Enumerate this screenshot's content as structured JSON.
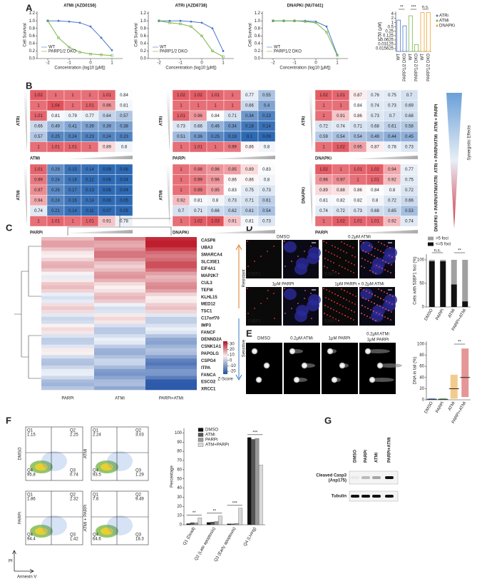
{
  "panel_labels": [
    "A",
    "B",
    "C",
    "D",
    "E",
    "F",
    "G"
  ],
  "A": {
    "ylabel": "Cell Survival",
    "xlabel": "Concentration (log10 [μM])",
    "xlim": [
      -2.5,
      1.5
    ],
    "ylim": [
      0,
      1.25
    ],
    "xticks": [
      -2,
      -1,
      0,
      1
    ],
    "yticks": [
      {
        "value": 0,
        "label": "0.0"
      },
      {
        "value": 0.2,
        "label": "0.2"
      },
      {
        "value": 0.4,
        "label": "0.4"
      },
      {
        "value": 0.6,
        "label": "0.6"
      },
      {
        "value": 0.8,
        "label": "0.8"
      },
      {
        "value": 1,
        "label": "1.0"
      },
      {
        "value": 1.2,
        "label": "1.2"
      }
    ],
    "plots": [
      {
        "title": "ATMi (AZD0156)",
        "series": [
          {
            "name": "WT",
            "color": "#4a78c8",
            "x": [
              -2,
              -1.5,
              -1,
              -0.5,
              0,
              0.5,
              1
            ],
            "values": [
              1.0,
              1.0,
              0.98,
              0.95,
              0.85,
              0.55,
              0.22
            ]
          },
          {
            "name": "PARP1/2 DKO",
            "color": "#7ab648",
            "x": [
              -2,
              -1.5,
              -1,
              -0.5,
              0,
              0.5,
              1
            ],
            "values": [
              1.0,
              0.55,
              0.3,
              0.17,
              0.12,
              0.1,
              0.08
            ]
          }
        ]
      },
      {
        "title": "ATRi (AZD6738)",
        "series": [
          {
            "name": "WT",
            "color": "#4a78c8",
            "x": [
              -2,
              -1.5,
              -1,
              -0.5,
              0,
              0.5,
              1
            ],
            "values": [
              1.0,
              1.0,
              1.0,
              0.98,
              0.95,
              0.8,
              0.2
            ]
          },
          {
            "name": "PARP1/2 DKO",
            "color": "#7ab648",
            "x": [
              -2,
              -1.5,
              -1,
              -0.5,
              0,
              0.5,
              1
            ],
            "values": [
              1.0,
              0.95,
              0.92,
              0.85,
              0.6,
              0.2,
              0.05
            ]
          }
        ]
      },
      {
        "title": "DNAPKi (NU7441)",
        "series": [
          {
            "name": "WT",
            "color": "#4a78c8",
            "x": [
              -2,
              -1.5,
              -1,
              -0.5,
              0,
              0.5,
              1
            ],
            "values": [
              1.0,
              1.0,
              1.0,
              1.0,
              0.98,
              0.85,
              0.1
            ]
          },
          {
            "name": "PARP1/2 DKO",
            "color": "#7ab648",
            "x": [
              -2,
              -1.5,
              -1,
              -0.5,
              0,
              0.5,
              1
            ],
            "values": [
              1.0,
              1.0,
              1.0,
              0.98,
              0.95,
              0.7,
              0.08
            ]
          }
        ]
      }
    ],
    "ic50": {
      "ylabel": "IC50 (μM)",
      "log_scale": true,
      "ylim": [
        0.01,
        6
      ],
      "yticks": [
        4,
        2,
        1,
        0.5,
        0.25,
        0.125,
        0.0625,
        0.03125,
        0.015625
      ],
      "categories": [
        "WT",
        "PARP1/2 DKO",
        "WT",
        "PARP1/2 DKO",
        "WT",
        "PARP1/2 DKO"
      ],
      "values": [
        1.5,
        0.6,
        3,
        0.03,
        5,
        5
      ],
      "colors": [
        "#4a78c8",
        "#4a78c8",
        "#7ab648",
        "#7ab648",
        "#f0a030",
        "#f0a030"
      ],
      "legend": [
        {
          "name": "ATRi",
          "color": "#4a78c8"
        },
        {
          "name": "ATMi",
          "color": "#7ab648"
        },
        {
          "name": "DNAPKi",
          "color": "#f0a030"
        }
      ],
      "annotations": [
        "**",
        "***",
        "n.s."
      ]
    }
  },
  "B": {
    "maps": [
      {
        "rowlabel": "ATRi",
        "collabel": "ATMi",
        "cells": [
          [
            1.02,
            1.0,
            1.0,
            1.0,
            1.01,
            0.84
          ],
          [
            1.0,
            1.04,
            1.0,
            1.01,
            0.96,
            0.81
          ],
          [
            1.01,
            0.81,
            0.79,
            0.77,
            0.64,
            0.57
          ],
          [
            0.66,
            0.49,
            0.41,
            0.39,
            0.39,
            0.38
          ],
          [
            0.57,
            0.25,
            0.24,
            0.23,
            0.24,
            0.23
          ],
          [
            1.0,
            1.01,
            1.01,
            1.0,
            0.89,
            0.8
          ]
        ]
      },
      {
        "rowlabel": "ATRi",
        "collabel": "PARPi",
        "cells": [
          [
            1.02,
            1.02,
            1.01,
            1.0,
            0.77,
            0.55
          ],
          [
            1.0,
            1.0,
            1.0,
            1.0,
            0.66,
            0.4
          ],
          [
            1.01,
            0.96,
            0.84,
            0.71,
            0.34,
            0.23
          ],
          [
            0.73,
            0.66,
            0.46,
            0.34,
            0.18,
            0.14
          ],
          [
            0.51,
            0.36,
            0.25,
            0.18,
            0.1,
            0.09
          ],
          [
            1.0,
            1.01,
            1.0,
            0.99,
            0.86,
            0.8
          ]
        ]
      },
      {
        "rowlabel": "ATRi",
        "collabel": "DNAPKi",
        "cells": [
          [
            1.02,
            1.01,
            0.87,
            0.76,
            0.75,
            0.7
          ],
          [
            1.0,
            1.0,
            0.84,
            0.74,
            0.73,
            0.69
          ],
          [
            1.0,
            0.91,
            0.86,
            0.73,
            0.7,
            0.68
          ],
          [
            0.72,
            0.74,
            0.71,
            0.68,
            0.61,
            0.58
          ],
          [
            0.59,
            0.54,
            0.54,
            0.49,
            0.44,
            0.45
          ],
          [
            1.0,
            1.02,
            0.95,
            0.87,
            0.78,
            0.73
          ]
        ]
      },
      {
        "rowlabel": "ATMi",
        "collabel": "PARPi",
        "cells": [
          [
            1.01,
            0.29,
            0.15,
            0.14,
            0.09,
            0.06
          ],
          [
            0.99,
            0.24,
            0.16,
            0.12,
            0.06,
            0.04
          ],
          [
            0.97,
            0.26,
            0.17,
            0.13,
            0.06,
            0.04
          ],
          [
            0.94,
            0.24,
            0.16,
            0.14,
            0.06,
            0.05
          ],
          [
            0.74,
            0.21,
            0.14,
            0.11,
            0.07,
            0.05
          ],
          [
            1.0,
            1.01,
            1.0,
            1.01,
            0.91,
            0.78
          ]
        ]
      },
      {
        "rowlabel": "ATMi",
        "collabel": "DNAPKi",
        "cells": [
          [
            1.0,
            0.98,
            0.96,
            0.95,
            0.89,
            0.83
          ],
          [
            1.0,
            0.99,
            0.96,
            0.86,
            0.86,
            0.8
          ],
          [
            1.0,
            0.99,
            0.95,
            0.83,
            0.75,
            0.73
          ],
          [
            0.92,
            0.81,
            0.8,
            0.73,
            0.71,
            0.61
          ],
          [
            0.7,
            0.71,
            0.66,
            0.62,
            0.61,
            0.54
          ],
          [
            1.0,
            1.02,
            1.03,
            0.91,
            0.81,
            0.73
          ]
        ]
      },
      {
        "rowlabel": "DNAPKi",
        "collabel": "PARPi",
        "cells": [
          [
            1.02,
            1.0,
            1.01,
            1.02,
            0.94,
            0.77
          ],
          [
            0.96,
            0.97,
            1.0,
            1.01,
            0.92,
            0.75
          ],
          [
            0.89,
            0.88,
            0.86,
            0.84,
            0.8,
            0.72
          ],
          [
            0.81,
            0.82,
            0.82,
            0.8,
            0.72,
            0.66
          ],
          [
            0.74,
            0.72,
            0.73,
            0.68,
            0.65,
            0.53
          ],
          [
            1.0,
            1.02,
            1.01,
            1.01,
            0.92,
            0.74
          ]
        ]
      }
    ],
    "legend": [
      "ATMi + PARPi",
      "ATRi + PARPi/ATMi",
      "DNAPKi + PARPi/ATMi/ATRi"
    ],
    "arrow_label": "Synergistic Effects"
  },
  "C": {
    "genes": [
      "CASP8",
      "UBA3",
      "SMARCA4",
      "SLC35E1",
      "EIF4A1",
      "MAP2K7",
      "CUL3",
      "TEFM",
      "KLHL15",
      "MED12",
      "TSC1",
      "C17orf70",
      "IMP3",
      "FANCF",
      "DENND2A",
      "CSNK1A1",
      "PAPOLG",
      "CSPG4",
      "ITPA",
      "FANCA",
      "ESCO2",
      "XRCC1"
    ],
    "columns": [
      "PARPi",
      "ATMi",
      "PARPi+ATMi"
    ],
    "resistant": "Resistant",
    "sensitive": "Sensitive",
    "colorbar": {
      "label": "Z-Score",
      "lim": [
        -25,
        35
      ],
      "ticks": [
        30,
        20,
        10,
        0,
        -10,
        -20
      ]
    }
  },
  "D": {
    "images": [
      "DMSO",
      "0.2μM ATMi",
      "1μM PARPi",
      "1μM PARPi + 0.2μM ATMi"
    ],
    "stain": "53BP1",
    "bars": {
      "categories": [
        "DMSO",
        "PARPi",
        "ATMi",
        "PARPi+ATMi"
      ],
      "series": [
        {
          "name": ">5 foci",
          "color": "#a0a0a0",
          "values": [
            3,
            3,
            52,
            88
          ]
        },
        {
          "name": "<=5 foci",
          "color": "#111111",
          "values": [
            97,
            97,
            48,
            12
          ]
        }
      ],
      "ylabel": "Cells with 53BP1 foci (%)",
      "ylim": [
        0,
        112
      ],
      "yticks": [
        0,
        50,
        100
      ],
      "annotations": [
        "n.s.",
        "**"
      ]
    }
  },
  "E": {
    "images": [
      "DMSO",
      "0.2μM ATMi",
      "1μM PARPi",
      "0.2μM ATMi",
      "1μM PARPi"
    ],
    "chart": {
      "categories": [
        "DMSO",
        "PARPi",
        "ATMi",
        "PARPi+ATMi"
      ],
      "colors": [
        "#4a78c8",
        "#4caf50",
        "#e8a030",
        "#d04040"
      ],
      "values": [
        1,
        1,
        20,
        40
      ],
      "ranges": [
        [
          0,
          3
        ],
        [
          0,
          3
        ],
        [
          2,
          45
        ],
        [
          5,
          92
        ]
      ],
      "ylabel": "DNA in tail (%)",
      "ylim": [
        0,
        105
      ],
      "yticks": [
        0,
        20,
        40,
        60,
        80,
        100
      ],
      "annotation": "**"
    }
  },
  "F": {
    "plots": [
      {
        "label": "DMSO",
        "quadrants": [
          {
            "name": "Q1",
            "value": 1.15
          },
          {
            "name": "Q2",
            "value": 2.25
          },
          {
            "name": "Q4",
            "value": 95.8
          },
          {
            "name": "Q3",
            "value": 0.74
          }
        ]
      },
      {
        "label": "ATMi",
        "quadrants": [
          {
            "name": "Q1",
            "value": 2.24
          },
          {
            "name": "Q2",
            "value": 3.03
          },
          {
            "name": "Q4",
            "value": 93.5
          },
          {
            "name": "Q3",
            "value": 1.29
          }
        ]
      },
      {
        "label": "PARPi",
        "quadrants": [
          {
            "name": "Q1",
            "value": 1.86
          },
          {
            "name": "Q2",
            "value": 2.32
          },
          {
            "name": "Q4",
            "value": 94.4
          },
          {
            "name": "Q3",
            "value": 1.42
          }
        ]
      },
      {
        "label": "ATMi + PARPi",
        "quadrants": [
          {
            "name": "Q1",
            "value": 7.6
          },
          {
            "name": "Q2",
            "value": 9.49
          },
          {
            "name": "Q4",
            "value": 64.6
          },
          {
            "name": "Q3",
            "value": 18.3
          }
        ]
      }
    ],
    "yaxis": "PI",
    "xaxis": "Annexin V",
    "bars": {
      "categories": [
        "Q1 (Dead)",
        "Q2 (Late apoptosis)",
        "Q3 (Early apoptosis)",
        "Q4 (Living)"
      ],
      "series": [
        {
          "name": "DMSO",
          "color": "#111111",
          "values": [
            1.2,
            2.5,
            1,
            95
          ]
        },
        {
          "name": "ATMi",
          "color": "#555555",
          "values": [
            2.3,
            3,
            1,
            93
          ]
        },
        {
          "name": "PARPi",
          "color": "#999999",
          "values": [
            2,
            3.5,
            1.5,
            94
          ]
        },
        {
          "name": "ATM+PARPi",
          "color": "#d8d8d8",
          "values": [
            7.5,
            9.5,
            18,
            65
          ]
        }
      ],
      "ylabel": "Percentage",
      "ylim": [
        0,
        105
      ],
      "yticks": [
        0,
        10,
        20,
        30,
        40,
        50,
        60,
        70,
        80,
        90,
        100
      ],
      "annotations": [
        "**",
        "**",
        "***",
        "***"
      ]
    }
  },
  "G": {
    "lanes": [
      "DMSO",
      "PARPi",
      "ATMi",
      "PARPi+ATMi"
    ],
    "rows": [
      [
        "Cleaved Casp3",
        "(Asp175)"
      ],
      [
        "Tubulin"
      ]
    ]
  }
}
